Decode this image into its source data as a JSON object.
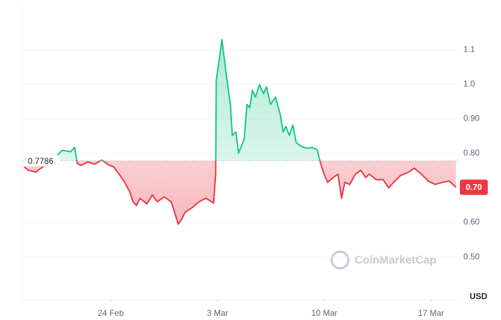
{
  "chart_data": {
    "type": "line",
    "x": [
      49.31,
      49.62,
      50.08,
      50.54,
      51.22,
      51.81,
      52.13,
      52.36,
      52.63,
      52.81,
      53.04,
      53.5,
      53.95,
      54.41,
      54.86,
      55.18,
      55.55,
      55.91,
      56.23,
      56.46,
      56.69,
      56.91,
      57.37,
      57.73,
      58.05,
      58.51,
      58.96,
      59.19,
      59.42,
      59.65,
      59.87,
      60.33,
      60.79,
      61.24,
      61.47,
      61.74,
      61.88,
      61.92,
      62.15,
      62.29,
      62.47,
      62.65,
      62.84,
      62.97,
      63.2,
      63.38,
      63.56,
      63.75,
      63.93,
      64.11,
      64.29,
      64.48,
      64.75,
      65.02,
      65.21,
      65.48,
      65.8,
      66.12,
      66.3,
      66.48,
      66.71,
      66.94,
      67.16,
      67.48,
      67.85,
      68.21,
      68.53,
      68.76,
      68.99,
      69.21,
      69.58,
      69.9,
      70.13,
      70.35,
      70.67,
      71.04,
      71.4,
      71.72,
      71.95,
      72.4,
      72.86,
      73.22,
      73.54,
      74.0,
      74.45,
      74.91,
      75.36,
      75.82,
      76.28,
      76.73,
      77.19,
      77.64
    ],
    "values": [
      0.761,
      0.751,
      0.746,
      0.761,
      0.781,
      0.809,
      0.807,
      0.805,
      0.817,
      0.771,
      0.765,
      0.775,
      0.769,
      0.781,
      0.767,
      0.761,
      0.74,
      0.716,
      0.69,
      0.66,
      0.649,
      0.67,
      0.654,
      0.68,
      0.66,
      0.674,
      0.66,
      0.629,
      0.595,
      0.609,
      0.629,
      0.643,
      0.66,
      0.67,
      0.664,
      0.656,
      0.74,
      1.013,
      1.084,
      1.13,
      1.064,
      1.003,
      0.942,
      0.852,
      0.862,
      0.801,
      0.821,
      0.841,
      0.942,
      0.932,
      0.983,
      0.963,
      0.999,
      0.973,
      0.993,
      0.942,
      0.963,
      0.912,
      0.862,
      0.878,
      0.852,
      0.882,
      0.831,
      0.821,
      0.815,
      0.817,
      0.811,
      0.771,
      0.74,
      0.716,
      0.73,
      0.74,
      0.67,
      0.716,
      0.71,
      0.74,
      0.751,
      0.73,
      0.74,
      0.724,
      0.724,
      0.7,
      0.716,
      0.736,
      0.744,
      0.757,
      0.74,
      0.72,
      0.71,
      0.716,
      0.72,
      0.702
    ],
    "color_above": "#16c784",
    "color_below": "#ea3943",
    "reference": 0.7786,
    "last_price_label": "0.70",
    "xlim": [
      49.2,
      77.8
    ],
    "xticks": [
      {
        "value": 55,
        "label": "24 Feb"
      },
      {
        "value": 62,
        "label": "3 Mar"
      },
      {
        "value": 69,
        "label": "10 Mar"
      },
      {
        "value": 76,
        "label": "17 Mar"
      }
    ],
    "ylim": [
      0.38,
      1.2
    ],
    "yticks": [
      {
        "value": 0.5,
        "label": "0.50"
      },
      {
        "value": 0.6,
        "label": "0.60"
      },
      {
        "value": 0.8,
        "label": "0.80"
      },
      {
        "value": 0.9,
        "label": "0.90"
      },
      {
        "value": 1,
        "label": "1.0"
      },
      1.1
    ],
    "y_unit": "USD",
    "watermark": "CoinMarketCap",
    "grid": true
  }
}
